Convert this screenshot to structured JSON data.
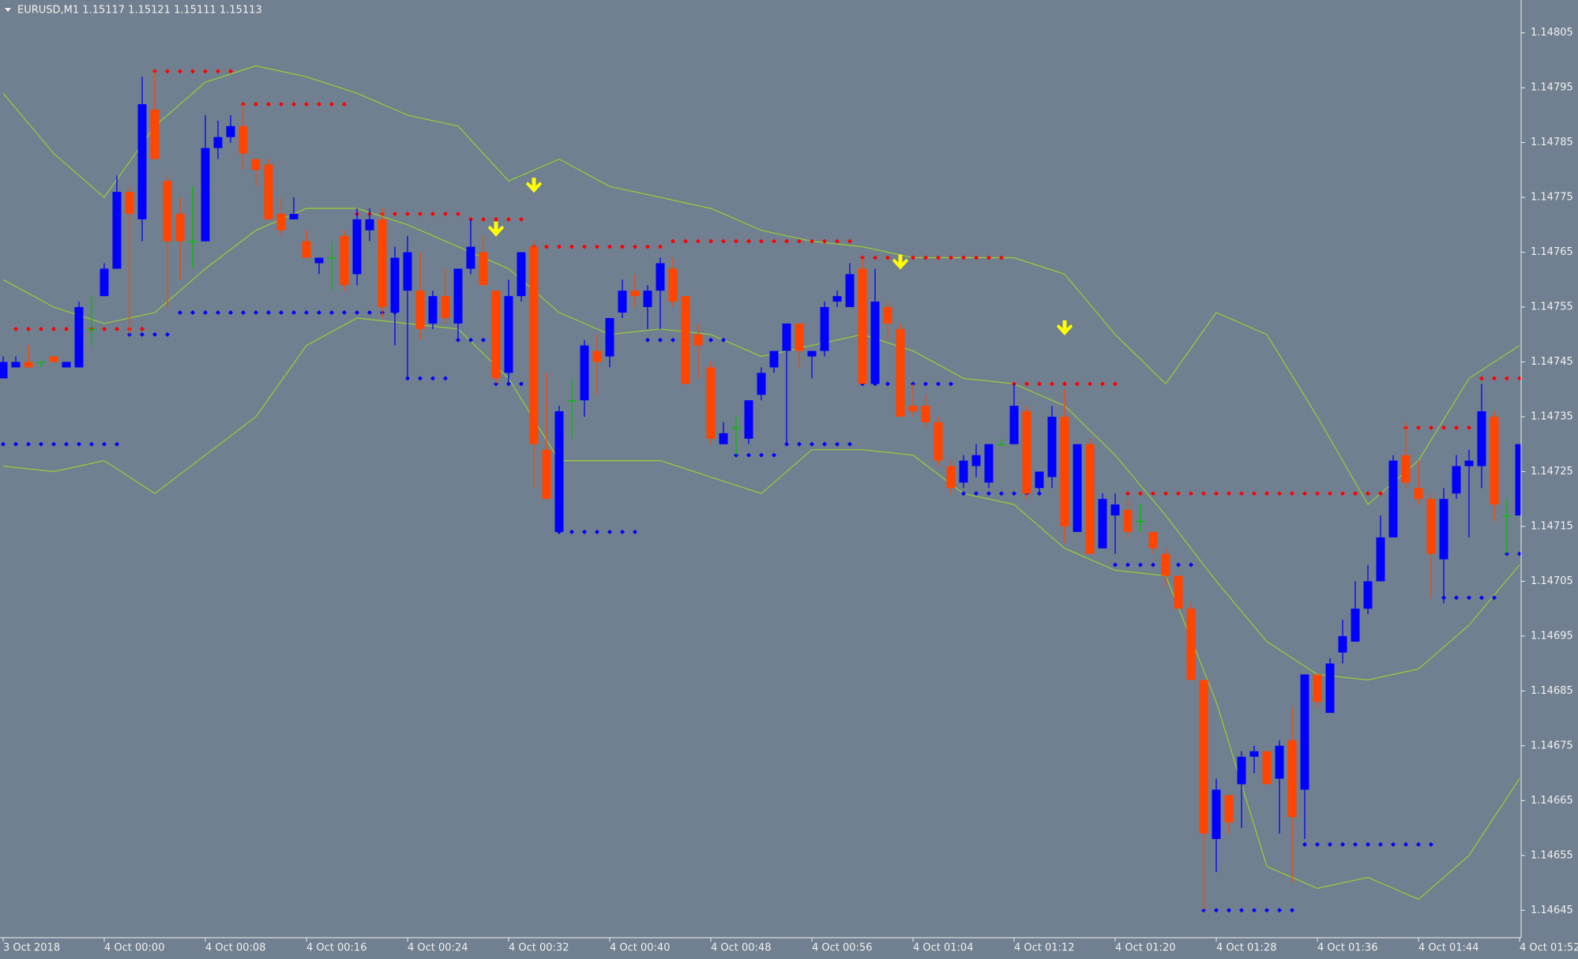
{
  "chart_data": {
    "type": "candlestick",
    "title": "EURUSD,M1  1.15117 1.15121 1.15111 1.15113",
    "categories": [
      "3 Oct 2018",
      null,
      null,
      null,
      null,
      null,
      null,
      null,
      "4 Oct 00:00",
      null,
      null,
      null,
      null,
      null,
      null,
      null,
      "4 Oct 00:08",
      null,
      null,
      null,
      null,
      null,
      null,
      null,
      "4 Oct 00:16",
      null,
      null,
      null,
      null,
      null,
      null,
      null,
      "4 Oct 00:24",
      null,
      null,
      null,
      null,
      null,
      null,
      null,
      "4 Oct 00:32",
      null,
      null,
      null,
      null,
      null,
      null,
      null,
      "4 Oct 00:40",
      null,
      null,
      null,
      null,
      null,
      null,
      null,
      "4 Oct 00:48",
      null,
      null,
      null,
      null,
      null,
      null,
      null,
      "4 Oct 00:56",
      null,
      null,
      null,
      null,
      null,
      null,
      null,
      "4 Oct 01:04",
      null,
      null,
      null,
      null,
      null,
      null,
      null,
      "4 Oct 01:12",
      null,
      null,
      null,
      null,
      null,
      null,
      null,
      "4 Oct 01:20",
      null,
      null,
      null,
      null,
      null,
      null,
      null,
      "4 Oct 01:28",
      null,
      null,
      null,
      null,
      null,
      null,
      null,
      "4 Oct 01:36",
      null,
      null,
      null,
      null,
      null,
      null,
      null,
      "4 Oct 01:44",
      null,
      null,
      null,
      null,
      null,
      null,
      null,
      "4 Oct 01:52"
    ],
    "open": [
      1.14742,
      1.14744,
      1.14745,
      1.14745,
      1.14746,
      1.14744,
      1.14744,
      1.14751,
      1.14757,
      1.14762,
      1.14776,
      1.14771,
      1.14791,
      1.14778,
      1.14772,
      1.14767,
      1.14767,
      1.14784,
      1.14786,
      1.14788,
      1.14782,
      1.14781,
      1.14772,
      1.14771,
      1.14767,
      1.14763,
      1.14764,
      1.14768,
      1.14761,
      1.14769,
      1.14771,
      1.14754,
      1.14758,
      1.14758,
      1.14752,
      1.14757,
      1.14752,
      1.14762,
      1.14765,
      1.14758,
      1.14743,
      1.14757,
      1.14766,
      1.14729,
      1.14714,
      1.14738,
      1.14738,
      1.14747,
      1.14746,
      1.14754,
      1.14758,
      1.14755,
      1.14758,
      1.14762,
      1.14757,
      1.1475,
      1.14744,
      1.1473,
      1.14733,
      1.14731,
      1.14739,
      1.14744,
      1.14747,
      1.14752,
      1.14746,
      1.14747,
      1.14756,
      1.14755,
      1.14762,
      1.14741,
      1.14755,
      1.14751,
      1.14737,
      1.14737,
      1.14734,
      1.14726,
      1.14723,
      1.14726,
      1.14723,
      1.1473,
      1.1473,
      1.14736,
      1.14722,
      1.14724,
      1.14735,
      1.14714,
      1.1473,
      1.14711,
      1.14717,
      1.14718,
      1.14716,
      1.14714,
      1.1471,
      1.14706,
      1.147,
      1.14687,
      1.14658,
      1.14666,
      1.14668,
      1.14673,
      1.14674,
      1.14669,
      1.14676,
      1.14667,
      1.14688,
      1.14681,
      1.14692,
      1.14694,
      1.147,
      1.14705,
      1.14713,
      1.14728,
      1.14722,
      1.1472,
      1.14709,
      1.14721,
      1.14726,
      1.14726,
      1.14735,
      1.14717,
      1.14717
    ],
    "high": [
      1.14746,
      1.14746,
      1.14748,
      1.14745,
      1.14746,
      1.14745,
      1.14756,
      1.14757,
      1.14763,
      1.14779,
      1.14777,
      1.14797,
      1.14798,
      1.14779,
      1.14775,
      1.14777,
      1.1479,
      1.14789,
      1.1479,
      1.14792,
      1.14782,
      1.14782,
      1.14775,
      1.14775,
      1.14769,
      1.14764,
      1.14767,
      1.14769,
      1.14773,
      1.14773,
      1.14773,
      1.14766,
      1.14768,
      1.14765,
      1.14758,
      1.14762,
      1.14762,
      1.14771,
      1.14768,
      1.14758,
      1.1476,
      1.14765,
      1.14767,
      1.14743,
      1.14737,
      1.14742,
      1.14749,
      1.1475,
      1.14753,
      1.1476,
      1.14761,
      1.14759,
      1.14764,
      1.14764,
      1.14757,
      1.14752,
      1.14745,
      1.14734,
      1.14735,
      1.14738,
      1.14744,
      1.14747,
      1.14752,
      1.14752,
      1.14747,
      1.14756,
      1.14758,
      1.14763,
      1.14764,
      1.14762,
      1.14756,
      1.14752,
      1.14741,
      1.14739,
      1.14735,
      1.14727,
      1.14728,
      1.1473,
      1.1473,
      1.14731,
      1.14741,
      1.14737,
      1.14725,
      1.14737,
      1.1474,
      1.1473,
      1.14731,
      1.14721,
      1.14721,
      1.1472,
      1.14719,
      1.14714,
      1.14711,
      1.14706,
      1.14701,
      1.14687,
      1.14669,
      1.14666,
      1.14674,
      1.14675,
      1.14674,
      1.14676,
      1.14682,
      1.14688,
      1.14688,
      1.14691,
      1.14698,
      1.14705,
      1.14708,
      1.14717,
      1.14728,
      1.14734,
      1.14727,
      1.14721,
      1.14722,
      1.14728,
      1.14729,
      1.14741,
      1.14736,
      1.1472,
      1.1473
    ],
    "low": [
      1.14742,
      1.14744,
      1.14744,
      1.14744,
      1.14745,
      1.14744,
      1.14744,
      1.14748,
      1.14757,
      1.14762,
      1.1475,
      1.14767,
      1.14782,
      1.14755,
      1.1476,
      1.14762,
      1.14767,
      1.14782,
      1.14785,
      1.1478,
      1.14777,
      1.14771,
      1.14768,
      1.14771,
      1.14764,
      1.14761,
      1.14758,
      1.14758,
      1.14759,
      1.14767,
      1.14753,
      1.14748,
      1.14742,
      1.14749,
      1.14751,
      1.14752,
      1.14749,
      1.14761,
      1.14759,
      1.14741,
      1.14741,
      1.14756,
      1.14722,
      1.1472,
      1.14714,
      1.14731,
      1.14735,
      1.14739,
      1.14744,
      1.14753,
      1.14755,
      1.14751,
      1.14751,
      1.14755,
      1.14741,
      1.14742,
      1.1473,
      1.1473,
      1.14728,
      1.1473,
      1.14738,
      1.14743,
      1.1473,
      1.14744,
      1.14742,
      1.14746,
      1.14755,
      1.14755,
      1.14741,
      1.14741,
      1.14749,
      1.14735,
      1.14735,
      1.14733,
      1.14726,
      1.14721,
      1.14722,
      1.14724,
      1.14722,
      1.1473,
      1.1473,
      1.1472,
      1.14721,
      1.14722,
      1.14712,
      1.14714,
      1.1471,
      1.14711,
      1.1471,
      1.14713,
      1.14714,
      1.1471,
      1.14704,
      1.147,
      1.14687,
      1.14645,
      1.14652,
      1.14659,
      1.1466,
      1.1467,
      1.14668,
      1.14659,
      1.1465,
      1.14658,
      1.14682,
      1.14681,
      1.1469,
      1.14694,
      1.14699,
      1.14705,
      1.14713,
      1.14722,
      1.14719,
      1.14702,
      1.14701,
      1.1472,
      1.14713,
      1.14722,
      1.14716,
      1.1471,
      1.14717
    ],
    "close": [
      1.14745,
      1.14745,
      1.14744,
      1.14745,
      1.14745,
      1.14745,
      1.14755,
      1.14751,
      1.14762,
      1.14776,
      1.14772,
      1.14792,
      1.14782,
      1.14767,
      1.14767,
      1.14767,
      1.14784,
      1.14786,
      1.14788,
      1.14783,
      1.1478,
      1.14771,
      1.14769,
      1.14772,
      1.14764,
      1.14764,
      1.14764,
      1.14759,
      1.14771,
      1.14771,
      1.14755,
      1.14764,
      1.14765,
      1.14751,
      1.14757,
      1.14753,
      1.14762,
      1.14766,
      1.14759,
      1.14742,
      1.14757,
      1.14765,
      1.1473,
      1.1472,
      1.14736,
      1.14738,
      1.14748,
      1.14745,
      1.14753,
      1.14758,
      1.14757,
      1.14758,
      1.14763,
      1.14756,
      1.14741,
      1.14748,
      1.14731,
      1.14732,
      1.14733,
      1.14738,
      1.14743,
      1.14747,
      1.14752,
      1.14747,
      1.14747,
      1.14755,
      1.14757,
      1.14761,
      1.14741,
      1.14756,
      1.14752,
      1.14735,
      1.14736,
      1.14734,
      1.14727,
      1.14722,
      1.14727,
      1.14728,
      1.1473,
      1.1473,
      1.14737,
      1.14721,
      1.14725,
      1.14735,
      1.14715,
      1.1473,
      1.1471,
      1.1472,
      1.14719,
      1.14714,
      1.14716,
      1.14711,
      1.14706,
      1.147,
      1.14687,
      1.14659,
      1.14667,
      1.14661,
      1.14673,
      1.14674,
      1.14668,
      1.14675,
      1.14662,
      1.14688,
      1.14683,
      1.1469,
      1.14695,
      1.147,
      1.14705,
      1.14713,
      1.14727,
      1.14723,
      1.1472,
      1.1471,
      1.1472,
      1.14726,
      1.14727,
      1.14736,
      1.14719,
      1.14717,
      1.1473
    ],
    "up_color": "#0000ff",
    "down_color": "#ff4500",
    "doji_color": "#00c000",
    "bands": [
      {
        "color": "#9acd32",
        "x": [
          0,
          4,
          8,
          12,
          16,
          20,
          24,
          28,
          32,
          36,
          40,
          44,
          48,
          52,
          56,
          60,
          64,
          68,
          72,
          76,
          80,
          84,
          88,
          92,
          96,
          100,
          104,
          108,
          112,
          116,
          120
        ],
        "values": [
          1.14794,
          1.14783,
          1.14775,
          1.14788,
          1.14796,
          1.14799,
          1.14797,
          1.14794,
          1.1479,
          1.14788,
          1.14778,
          1.14782,
          1.14777,
          1.14775,
          1.14773,
          1.14769,
          1.14767,
          1.14766,
          1.14764,
          1.14764,
          1.14764,
          1.14761,
          1.1475,
          1.14741,
          1.14754,
          1.1475,
          1.14735,
          1.14719,
          1.14727,
          1.14742,
          1.14748
        ]
      },
      {
        "color": "#9acd32",
        "x": [
          0,
          4,
          8,
          12,
          16,
          20,
          24,
          28,
          32,
          36,
          40,
          44,
          48,
          52,
          56,
          60,
          64,
          68,
          72,
          76,
          80,
          84,
          88,
          92,
          96,
          100,
          104,
          108,
          112,
          116,
          120
        ],
        "values": [
          1.1476,
          1.14755,
          1.14752,
          1.14754,
          1.14762,
          1.14769,
          1.14773,
          1.14773,
          1.1477,
          1.14766,
          1.14762,
          1.14754,
          1.1475,
          1.14751,
          1.1475,
          1.14746,
          1.14748,
          1.1475,
          1.14747,
          1.14742,
          1.14741,
          1.14737,
          1.14728,
          1.14717,
          1.14705,
          1.14694,
          1.14688,
          1.14687,
          1.14689,
          1.14697,
          1.14708
        ]
      },
      {
        "color": "#9acd32",
        "x": [
          0,
          4,
          8,
          12,
          16,
          20,
          24,
          28,
          32,
          36,
          40,
          44,
          48,
          52,
          56,
          60,
          64,
          68,
          72,
          76,
          80,
          84,
          88,
          92,
          96,
          100,
          104,
          108,
          112,
          116,
          120
        ],
        "values": [
          1.14726,
          1.14725,
          1.14727,
          1.14721,
          1.14728,
          1.14735,
          1.14748,
          1.14753,
          1.14752,
          1.14751,
          1.14742,
          1.14727,
          1.14727,
          1.14727,
          1.14724,
          1.14721,
          1.14729,
          1.14729,
          1.14728,
          1.14721,
          1.14719,
          1.14711,
          1.14707,
          1.14706,
          1.14683,
          1.14653,
          1.14649,
          1.14651,
          1.14647,
          1.14655,
          1.14669
        ]
      }
    ],
    "levels": [
      {
        "color": "#ff0000",
        "segments": [
          {
            "from": 1,
            "to": 11,
            "value": 1.14751
          },
          {
            "from": 12,
            "to": 18,
            "value": 1.14798
          },
          {
            "from": 19,
            "to": 27,
            "value": 1.14792
          },
          {
            "from": 28,
            "to": 36,
            "value": 1.14772
          },
          {
            "from": 37,
            "to": 41,
            "value": 1.14771
          },
          {
            "from": 42,
            "to": 52,
            "value": 1.14766
          },
          {
            "from": 53,
            "to": 67,
            "value": 1.14767
          },
          {
            "from": 68,
            "to": 79,
            "value": 1.14764
          },
          {
            "from": 80,
            "to": 88,
            "value": 1.14741
          },
          {
            "from": 89,
            "to": 109,
            "value": 1.14721
          },
          {
            "from": 111,
            "to": 116,
            "value": 1.14733
          },
          {
            "from": 117,
            "to": 120,
            "value": 1.14742
          }
        ]
      },
      {
        "color": "#0000ff",
        "segments": [
          {
            "from": 0,
            "to": 9,
            "value": 1.1473
          },
          {
            "from": 10,
            "to": 13,
            "value": 1.1475
          },
          {
            "from": 14,
            "to": 31,
            "value": 1.14754
          },
          {
            "from": 32,
            "to": 35,
            "value": 1.14742
          },
          {
            "from": 36,
            "to": 38,
            "value": 1.14749
          },
          {
            "from": 39,
            "to": 41,
            "value": 1.14741
          },
          {
            "from": 44,
            "to": 50,
            "value": 1.14714
          },
          {
            "from": 51,
            "to": 57,
            "value": 1.14749
          },
          {
            "from": 58,
            "to": 61,
            "value": 1.14728
          },
          {
            "from": 62,
            "to": 67,
            "value": 1.1473
          },
          {
            "from": 68,
            "to": 70,
            "value": 1.14741
          },
          {
            "from": 72,
            "to": 75,
            "value": 1.14741
          },
          {
            "from": 76,
            "to": 82,
            "value": 1.14721
          },
          {
            "from": 88,
            "to": 94,
            "value": 1.14708
          },
          {
            "from": 95,
            "to": 102,
            "value": 1.14645
          },
          {
            "from": 103,
            "to": 113,
            "value": 1.14657
          },
          {
            "from": 114,
            "to": 118,
            "value": 1.14702
          },
          {
            "from": 119,
            "to": 120,
            "value": 1.1471
          }
        ]
      }
    ],
    "arrows": {
      "color": "#ffff00",
      "points": [
        {
          "x": 39,
          "value": 1.14769
        },
        {
          "x": 42,
          "value": 1.14777
        },
        {
          "x": 71,
          "value": 1.14763
        },
        {
          "x": 84,
          "value": 1.14751
        }
      ]
    },
    "ylim": [
      1.1464,
      1.14811
    ],
    "yticks": [
      1.14805,
      1.14795,
      1.14785,
      1.14775,
      1.14765,
      1.14755,
      1.14745,
      1.14735,
      1.14725,
      1.14715,
      1.14705,
      1.14695,
      1.14685,
      1.14675,
      1.14665,
      1.14655,
      1.14645
    ],
    "background": "#708090",
    "axis_color": "#f0f0f0"
  }
}
